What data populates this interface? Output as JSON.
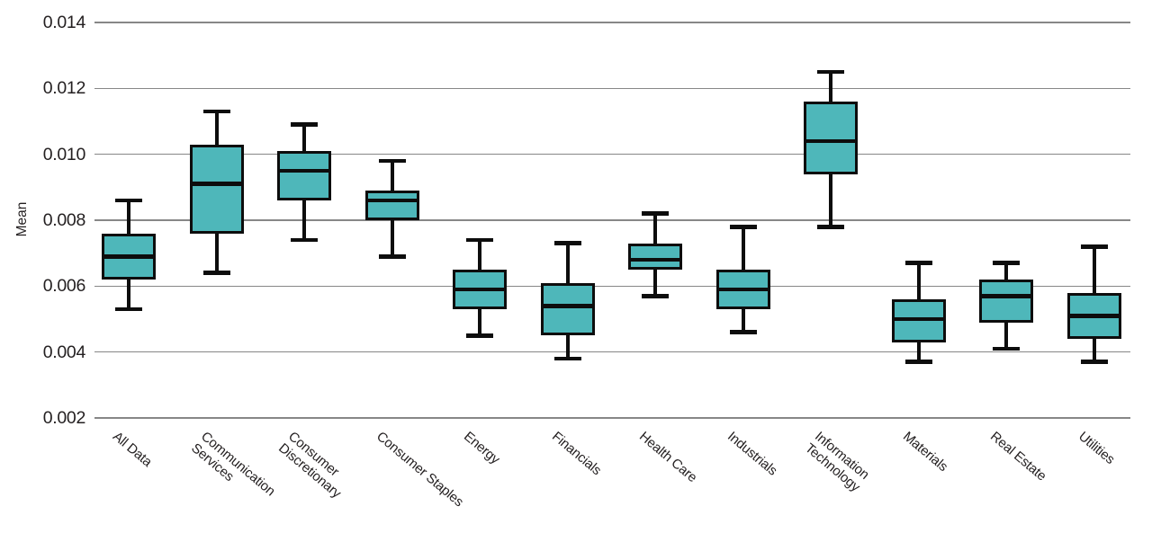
{
  "chart_data": {
    "type": "boxplot",
    "title": "",
    "xlabel": "",
    "ylabel": "Mean",
    "ylim": [
      0.002,
      0.014
    ],
    "grid": true,
    "legend": false,
    "yticks": [
      "0.014",
      "0.012",
      "0.010",
      "0.008",
      "0.006",
      "0.004",
      "0.002"
    ],
    "categories": [
      "All Data",
      "Communication\nServices",
      "Consumer\nDiscretionary",
      "Consumer Staples",
      "Energy",
      "Financials",
      "Health Care",
      "Industrials",
      "Information\nTechnology",
      "Materials",
      "Real Estate",
      "Utilities"
    ],
    "boxes": [
      {
        "category": "All Data",
        "whisker_low": 0.0053,
        "q1": 0.0062,
        "median": 0.0069,
        "q3": 0.0076,
        "whisker_high": 0.0086
      },
      {
        "category": "Communication Services",
        "whisker_low": 0.0064,
        "q1": 0.0076,
        "median": 0.0091,
        "q3": 0.0103,
        "whisker_high": 0.0113
      },
      {
        "category": "Consumer Discretionary",
        "whisker_low": 0.0074,
        "q1": 0.0086,
        "median": 0.0095,
        "q3": 0.0101,
        "whisker_high": 0.0109
      },
      {
        "category": "Consumer Staples",
        "whisker_low": 0.0069,
        "q1": 0.008,
        "median": 0.0086,
        "q3": 0.0089,
        "whisker_high": 0.0098
      },
      {
        "category": "Energy",
        "whisker_low": 0.0045,
        "q1": 0.0053,
        "median": 0.0059,
        "q3": 0.0065,
        "whisker_high": 0.0074
      },
      {
        "category": "Financials",
        "whisker_low": 0.0038,
        "q1": 0.0045,
        "median": 0.0054,
        "q3": 0.0061,
        "whisker_high": 0.0073
      },
      {
        "category": "Health Care",
        "whisker_low": 0.0057,
        "q1": 0.0065,
        "median": 0.0068,
        "q3": 0.0073,
        "whisker_high": 0.0082
      },
      {
        "category": "Industrials",
        "whisker_low": 0.0046,
        "q1": 0.0053,
        "median": 0.0059,
        "q3": 0.0065,
        "whisker_high": 0.0078
      },
      {
        "category": "Information Technology",
        "whisker_low": 0.0078,
        "q1": 0.0094,
        "median": 0.0104,
        "q3": 0.0116,
        "whisker_high": 0.0125
      },
      {
        "category": "Materials",
        "whisker_low": 0.0037,
        "q1": 0.0043,
        "median": 0.005,
        "q3": 0.0056,
        "whisker_high": 0.0067
      },
      {
        "category": "Real Estate",
        "whisker_low": 0.0041,
        "q1": 0.0049,
        "median": 0.0057,
        "q3": 0.0062,
        "whisker_high": 0.0067
      },
      {
        "category": "Utilities",
        "whisker_low": 0.0037,
        "q1": 0.0044,
        "median": 0.0051,
        "q3": 0.0058,
        "whisker_high": 0.0072
      }
    ],
    "colors": {
      "box_fill": "#4eb7ba",
      "stroke": "#0d0d0d",
      "gridline": "#878787",
      "text": "#231f20",
      "background": "#ffffff"
    }
  }
}
